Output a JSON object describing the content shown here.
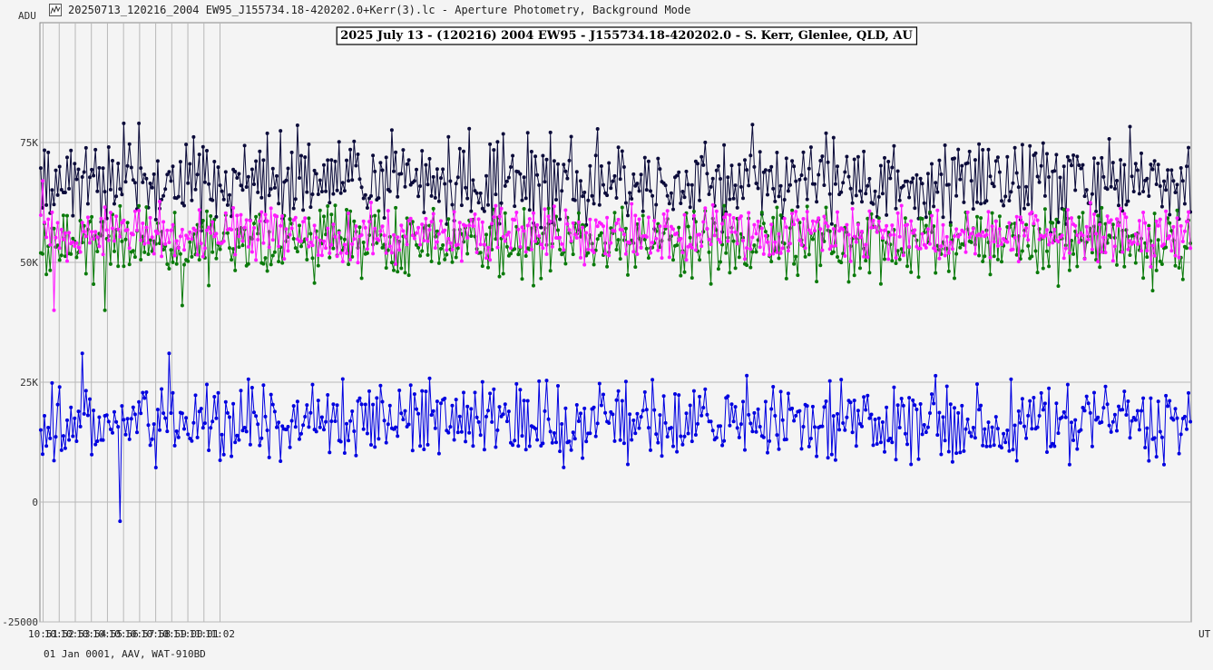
{
  "window": {
    "title": "20250713_120216_2004 EW95_J155734.18-420202.0+Kerr(3).lc - Aperture Photometry, Background Mode",
    "icon": "light-curve-app-icon"
  },
  "footer": {
    "text": "01 Jan 0001, AAV, WAT-910BD"
  },
  "colors": {
    "background": "#f4f4f4",
    "grid": "#b8b8b8",
    "series_black": "#0b0b3a",
    "series_green": "#0a7a0a",
    "series_magenta": "#ff1aff",
    "series_blue": "#0000e0"
  },
  "chart_data": {
    "type": "line",
    "title": "2025 July 13 - (120216) 2004 EW95 - J155734.18-420202.0 - S. Kerr, Glenlee, QLD, AU",
    "ylabel": "ADU",
    "xlabel": "UT",
    "ylim": [
      -25000,
      100000
    ],
    "xlim_minutes": [
      650.8,
      722.4
    ],
    "yticks": [
      {
        "value": 75000,
        "label": "75K"
      },
      {
        "value": 50000,
        "label": "50K"
      },
      {
        "value": 25000,
        "label": "25K"
      },
      {
        "value": 0,
        "label": "0"
      },
      {
        "value": -25000,
        "label": "-25000"
      }
    ],
    "xticks": [
      {
        "minute": 651,
        "label": "10:51"
      },
      {
        "minute": 652,
        "label": "10:52"
      },
      {
        "minute": 653,
        "label": "10:53"
      },
      {
        "minute": 654,
        "label": "10:54"
      },
      {
        "minute": 655,
        "label": "10:55"
      },
      {
        "minute": 656,
        "label": "10:56"
      },
      {
        "minute": 657,
        "label": "10:57"
      },
      {
        "minute": 658,
        "label": "10:58"
      },
      {
        "minute": 659,
        "label": "10:59"
      },
      {
        "minute": 660,
        "label": "11:00"
      },
      {
        "minute": 661,
        "label": "11:01"
      },
      {
        "minute": 662,
        "label": "11:02"
      }
    ],
    "grid": true,
    "legend": "none",
    "series": [
      {
        "color": "#0b0b3a",
        "mean": 66000,
        "spread": 5000,
        "samples": [
          68000,
          64000,
          74000,
          62000,
          72000,
          60000,
          70000,
          66000,
          77000,
          63000,
          69000,
          58000,
          73000,
          65000,
          71000,
          61000,
          75000,
          64000,
          67000,
          59000,
          76000,
          62000,
          70000,
          66000,
          72000,
          60000,
          68000,
          79000,
          63000,
          71000,
          65000,
          74000,
          61000,
          69000,
          67000,
          58000,
          78000,
          64000,
          72000,
          62000,
          70000,
          66000,
          73000,
          60000,
          68000,
          77000,
          63000,
          71000,
          65000,
          69000
        ],
        "extremes": [
          {
            "minute": 656.0,
            "value": 79000
          },
          {
            "minute": 657.0,
            "value": 79000
          }
        ]
      },
      {
        "color": "#0a7a0a",
        "mean": 55000,
        "spread": 4500,
        "samples": [
          54000,
          49000,
          58000,
          51000,
          56000,
          47000,
          60000,
          53000,
          57000,
          50000,
          55000,
          46000,
          59000,
          52000,
          56000,
          48000,
          58000,
          54000,
          51000,
          57000,
          45000,
          60000,
          53000,
          55000,
          49000,
          58000,
          52000,
          56000,
          47000,
          59000,
          54000,
          50000,
          57000,
          53000,
          48000,
          56000,
          55000,
          51000,
          58000,
          44000,
          57000,
          52000,
          60000,
          50000,
          54000,
          47000,
          56000,
          53000,
          58000,
          49000
        ],
        "extremes": [
          {
            "minute": 654.9,
            "value": 40000
          },
          {
            "minute": 659.6,
            "value": 41000
          }
        ]
      },
      {
        "color": "#ff1aff",
        "mean": 56000,
        "spread": 3500,
        "samples": [
          58000,
          54000,
          60000,
          52000,
          57000,
          55000,
          62000,
          53000,
          59000,
          56000,
          51000,
          58000,
          55000,
          61000,
          53000,
          57000,
          54000,
          60000,
          52000,
          58000,
          56000,
          55000,
          59000,
          53000,
          57000,
          61000,
          54000,
          56000,
          58000,
          52000,
          60000,
          55000,
          57000,
          53000,
          59000,
          56000,
          54000,
          58000,
          51000,
          57000,
          55000,
          60000,
          53000,
          56000,
          58000,
          54000,
          57000,
          55000,
          59000,
          53000
        ],
        "extremes": [
          {
            "minute": 651.7,
            "value": 40000
          },
          {
            "minute": 651.0,
            "value": 67000
          }
        ]
      },
      {
        "color": "#0000e0",
        "mean": 17000,
        "spread": 5000,
        "samples": [
          16000,
          13000,
          21000,
          11000,
          19000,
          15000,
          24000,
          12000,
          18000,
          14000,
          22000,
          10000,
          20000,
          16000,
          25000,
          13000,
          17000,
          11000,
          23000,
          15000,
          19000,
          12000,
          21000,
          14000,
          26000,
          16000,
          18000,
          10000,
          22000,
          13000,
          20000,
          15000,
          17000,
          11000,
          24000,
          14000,
          19000,
          12000,
          21000,
          16000,
          18000,
          13000,
          23000,
          15000,
          20000,
          11000,
          22000,
          14000,
          17000,
          16000
        ],
        "extremes": [
          {
            "minute": 655.8,
            "value": -4000
          },
          {
            "minute": 658.8,
            "value": 31000
          },
          {
            "minute": 653.4,
            "value": 31000
          }
        ]
      }
    ]
  }
}
